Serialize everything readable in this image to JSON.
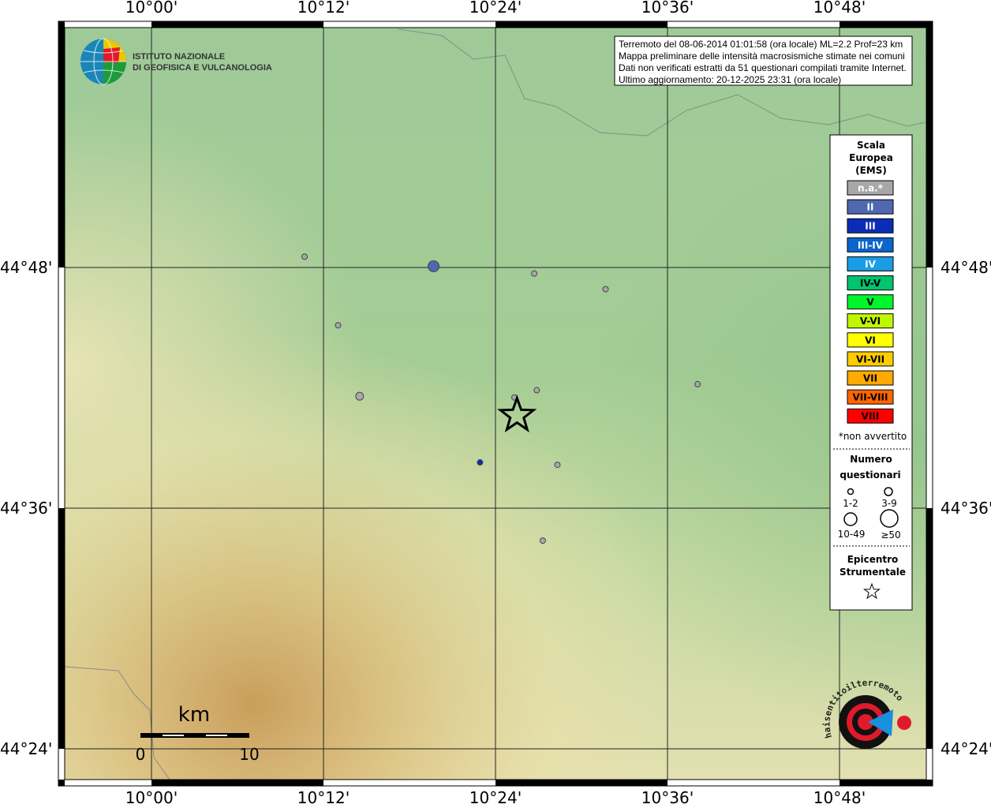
{
  "map": {
    "x_ticks": [
      "10°00'",
      "10°12'",
      "10°24'",
      "10°36'",
      "10°48'"
    ],
    "x_tick_values": [
      10.0,
      10.2,
      10.4,
      10.6,
      10.8
    ],
    "y_ticks": [
      "44°48'",
      "44°36'",
      "44°24'"
    ],
    "y_tick_values": [
      44.8,
      44.6,
      44.4
    ],
    "lon_range": [
      9.935,
      10.86
    ],
    "lat_range": [
      44.34,
      44.985
    ]
  },
  "info_box": {
    "line1": "Terremoto del 08-06-2014 01:01:58 (ora locale) ML=2.2 Prof=23 km",
    "line2": "Mappa preliminare delle intensità macrosismiche stimate nei comuni",
    "line3": "Dati non verificati estratti da 51 questionari compilati tramite Internet.",
    "line4": "Ultimo aggiornamento: 20-12-2025 23:31 (ora locale)"
  },
  "logo_ingv": {
    "line1": "ISTITUTO NAZIONALE",
    "line2": "DI GEOFISICA E VULCANOLOGIA"
  },
  "logo_hsit": {
    "text": "www.haisentitoilterremoto.it"
  },
  "scale_bar": {
    "unit": "km",
    "start": "0",
    "end": "10"
  },
  "legend": {
    "title1": "Scala",
    "title2": "Europea",
    "title3": "(EMS)",
    "classes": [
      {
        "label": "n.a.*",
        "color": "#a8a8a8",
        "text_color": "#ffffff"
      },
      {
        "label": "II",
        "color": "#5068b0",
        "text_color": "#ffffff"
      },
      {
        "label": "III",
        "color": "#0a2db8",
        "text_color": "#ffffff"
      },
      {
        "label": "III-IV",
        "color": "#0a66cc",
        "text_color": "#ffffff"
      },
      {
        "label": "IV",
        "color": "#1a9de6",
        "text_color": "#ffffff"
      },
      {
        "label": "IV-V",
        "color": "#00c46e",
        "text_color": "#000000"
      },
      {
        "label": "V",
        "color": "#00f52a",
        "text_color": "#000000"
      },
      {
        "label": "V-VI",
        "color": "#c0f700",
        "text_color": "#000000"
      },
      {
        "label": "VI",
        "color": "#ffff00",
        "text_color": "#000000"
      },
      {
        "label": "VI-VII",
        "color": "#ffcc00",
        "text_color": "#000000"
      },
      {
        "label": "VII",
        "color": "#ffaa00",
        "text_color": "#000000"
      },
      {
        "label": "VII-VIII",
        "color": "#ff6600",
        "text_color": "#000000"
      },
      {
        "label": "VIII",
        "color": "#ff0000",
        "text_color": "#000000"
      }
    ],
    "na_note": "*non avvertito",
    "count_title1": "Numero",
    "count_title2": "questionari",
    "count_classes": [
      "1-2",
      "3-9",
      "10-49",
      "≥50"
    ],
    "epicenter_title1": "Epicentro",
    "epicenter_title2": "Strumentale"
  },
  "epicenter": {
    "lon": 10.425,
    "lat": 44.677
  },
  "observations": [
    {
      "lon": 10.178,
      "lat": 44.809,
      "intensity": "n.a.*",
      "count": "1-2"
    },
    {
      "lon": 10.328,
      "lat": 44.801,
      "intensity": "II",
      "count": "10-49"
    },
    {
      "lon": 10.445,
      "lat": 44.795,
      "intensity": "n.a.*",
      "count": "1-2"
    },
    {
      "lon": 10.528,
      "lat": 44.782,
      "intensity": "n.a.*",
      "count": "1-2"
    },
    {
      "lon": 10.217,
      "lat": 44.752,
      "intensity": "n.a.*",
      "count": "1-2"
    },
    {
      "lon": 10.242,
      "lat": 44.693,
      "intensity": "n.a.*",
      "count": "3-9"
    },
    {
      "lon": 10.422,
      "lat": 44.692,
      "intensity": "n.a.*",
      "count": "1-2"
    },
    {
      "lon": 10.448,
      "lat": 44.698,
      "intensity": "n.a.*",
      "count": "1-2"
    },
    {
      "lon": 10.635,
      "lat": 44.703,
      "intensity": "n.a.*",
      "count": "1-2"
    },
    {
      "lon": 10.382,
      "lat": 44.638,
      "intensity": "III",
      "count": "1-2"
    },
    {
      "lon": 10.472,
      "lat": 44.636,
      "intensity": "n.a.*",
      "count": "1-2"
    },
    {
      "lon": 10.455,
      "lat": 44.573,
      "intensity": "n.a.*",
      "count": "1-2"
    }
  ]
}
